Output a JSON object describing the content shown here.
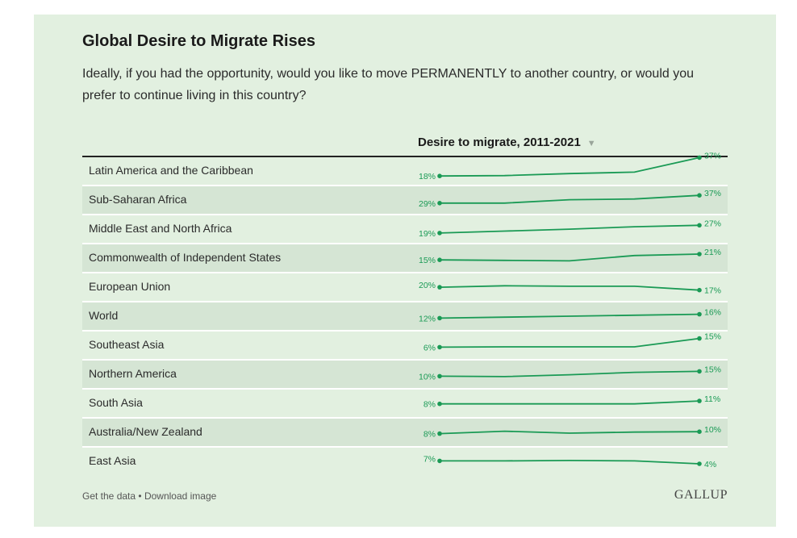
{
  "header": {
    "title": "Global Desire to Migrate Rises",
    "subtitle": "Ideally, if you had the opportunity, would you like to move PERMANENTLY to another country, or would you prefer to continue living in this country?",
    "column_label": "Desire to migrate, 2011-2021",
    "sort_icon": "▼"
  },
  "footer": {
    "get_data": "Get the data",
    "separator": "•",
    "download": "Download image",
    "logo": "GALLUP"
  },
  "colors": {
    "line": "#1a9a55",
    "label": "#1a9a55"
  },
  "chart_data": {
    "type": "line",
    "title": "Global Desire to Migrate Rises",
    "column_label": "Desire to migrate, 2011-2021",
    "value_unit": "%",
    "series": [
      {
        "name": "Latin America and the Caribbean",
        "values": [
          18,
          18.4,
          20.5,
          22,
          37
        ]
      },
      {
        "name": "Sub-Saharan Africa",
        "values": [
          29,
          29,
          32.5,
          33.2,
          37
        ]
      },
      {
        "name": "Middle East and North Africa",
        "values": [
          19,
          21,
          23,
          25.5,
          27
        ]
      },
      {
        "name": "Commonwealth of Independent States",
        "values": [
          15,
          14.5,
          14,
          19.5,
          21
        ]
      },
      {
        "name": "European Union",
        "values": [
          20,
          21.5,
          21,
          21,
          17
        ]
      },
      {
        "name": "World",
        "values": [
          12,
          13,
          14,
          15,
          16
        ]
      },
      {
        "name": "Southeast Asia",
        "values": [
          6,
          6.3,
          6.3,
          6.3,
          15
        ]
      },
      {
        "name": "Northern America",
        "values": [
          10,
          9.6,
          11.5,
          14,
          15
        ]
      },
      {
        "name": "South Asia",
        "values": [
          8,
          8,
          8,
          8,
          11
        ]
      },
      {
        "name": "Australia/New Zealand",
        "values": [
          8,
          10.5,
          8.5,
          9.6,
          10
        ]
      },
      {
        "name": "East Asia",
        "values": [
          7,
          7,
          7.4,
          7,
          4
        ]
      }
    ],
    "first_labels": [
      "18%",
      "29%",
      "19%",
      "15%",
      "20%",
      "12%",
      "6%",
      "10%",
      "8%",
      "8%",
      "7%"
    ],
    "last_labels": [
      "37%",
      "37%",
      "27%",
      "21%",
      "17%",
      "16%",
      "15%",
      "15%",
      "11%",
      "10%",
      "4%"
    ]
  }
}
